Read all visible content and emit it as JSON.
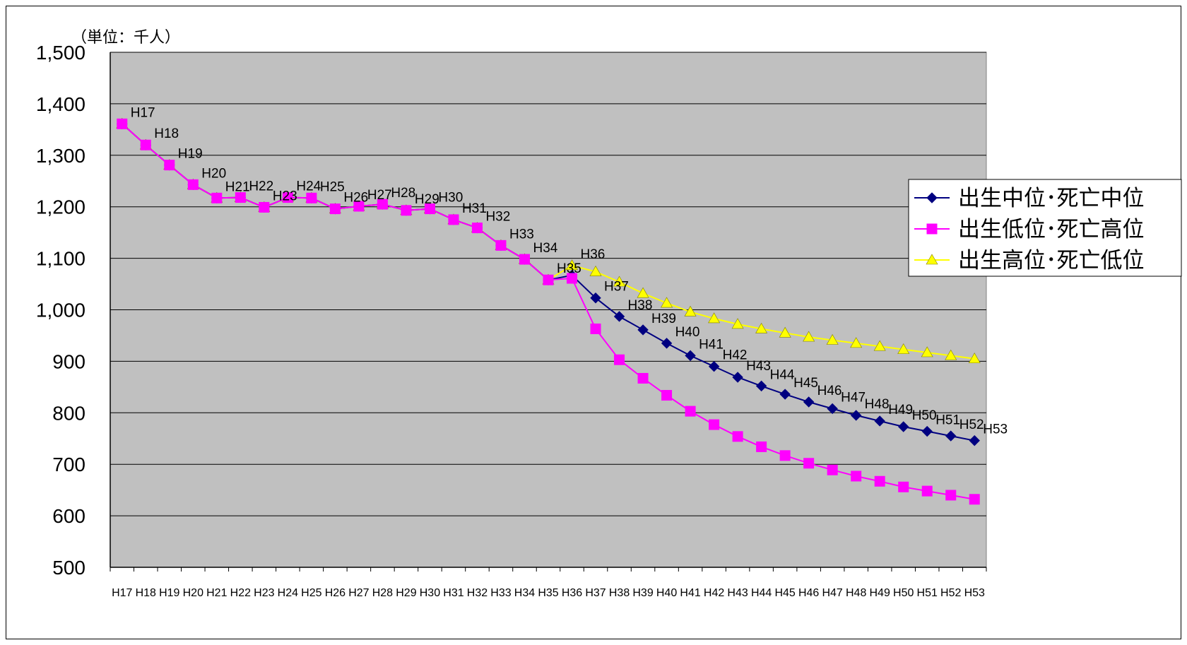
{
  "unit_label": "（単位：千人）",
  "chart_data": {
    "type": "line",
    "unit": "（単位：千人）",
    "categories": [
      "H17",
      "H18",
      "H19",
      "H20",
      "H21",
      "H22",
      "H23",
      "H24",
      "H25",
      "H26",
      "H27",
      "H28",
      "H29",
      "H30",
      "H31",
      "H32",
      "H33",
      "H34",
      "H35",
      "H36",
      "H37",
      "H38",
      "H39",
      "H40",
      "H41",
      "H42",
      "H43",
      "H44",
      "H45",
      "H46",
      "H47",
      "H48",
      "H49",
      "H50",
      "H51",
      "H52",
      "H53"
    ],
    "ylim": [
      500,
      1500
    ],
    "yticks": [
      500,
      600,
      700,
      800,
      900,
      1000,
      1100,
      1200,
      1300,
      1400,
      1500
    ],
    "ytick_labels": [
      "500",
      "600",
      "700",
      "800",
      "900",
      "1,000",
      "1,100",
      "1,200",
      "1,300",
      "1,400",
      "1,500"
    ],
    "grid": true,
    "plot_background": "#c0c0c0",
    "legend_position": "right",
    "point_label_series": [
      0,
      0,
      0,
      0,
      0,
      0,
      0,
      0,
      0,
      0,
      0,
      0,
      0,
      0,
      0,
      0,
      0,
      0,
      0,
      2,
      0,
      0,
      0,
      0,
      0,
      0,
      0,
      0,
      0,
      0,
      0,
      0,
      0,
      0,
      0,
      0,
      0
    ],
    "series": [
      {
        "name": "出生中位･死亡中位",
        "color": "#000080",
        "marker": "diamond",
        "values": [
          1361,
          1320,
          1281,
          1243,
          1217,
          1218,
          1199,
          1218,
          1217,
          1196,
          1201,
          1205,
          1193,
          1196,
          1175,
          1159,
          1125,
          1098,
          1058,
          1067,
          1023,
          987,
          961,
          935,
          911,
          890,
          869,
          852,
          836,
          821,
          808,
          795,
          784,
          773,
          764,
          755,
          746
        ]
      },
      {
        "name": "出生低位･死亡高位",
        "color": "#ff00ff",
        "marker": "square",
        "values": [
          1361,
          1320,
          1281,
          1243,
          1217,
          1218,
          1199,
          1218,
          1217,
          1196,
          1201,
          1205,
          1193,
          1196,
          1175,
          1159,
          1125,
          1098,
          1058,
          1061,
          963,
          903,
          867,
          834,
          803,
          777,
          754,
          734,
          717,
          702,
          689,
          677,
          667,
          656,
          648,
          640,
          632
        ]
      },
      {
        "name": "出生高位･死亡低位",
        "color": "#ffff00",
        "marker": "triangle",
        "values": [
          1361,
          1320,
          1281,
          1243,
          1217,
          1218,
          1199,
          1218,
          1217,
          1196,
          1201,
          1205,
          1193,
          1196,
          1175,
          1159,
          1125,
          1098,
          1058,
          1086,
          1074,
          1054,
          1032,
          1013,
          996,
          983,
          972,
          963,
          955,
          947,
          941,
          935,
          929,
          923,
          917,
          911,
          905
        ]
      }
    ]
  }
}
